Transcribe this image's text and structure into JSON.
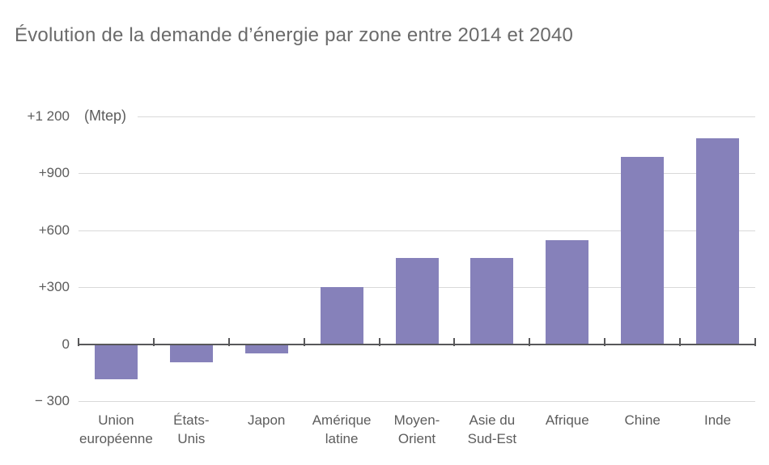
{
  "page": {
    "background_color": "#ffffff"
  },
  "chart_data": {
    "type": "bar",
    "title": "Évolution de la demande d’énergie par zone entre 2014 et 2040",
    "unit_label": "(Mtep)",
    "categories": [
      "Union européenne",
      "États-Unis",
      "Japon",
      "Amérique latine",
      "Moyen-Orient",
      "Asie du Sud-Est",
      "Afrique",
      "Chine",
      "Inde"
    ],
    "category_label_lines": [
      [
        "Union",
        "européenne"
      ],
      [
        "États-",
        "Unis"
      ],
      [
        "Japon"
      ],
      [
        "Amérique",
        "latine"
      ],
      [
        "Moyen-",
        "Orient"
      ],
      [
        "Asie du",
        "Sud-Est"
      ],
      [
        "Afrique"
      ],
      [
        "Chine"
      ],
      [
        "Inde"
      ]
    ],
    "values": [
      -185,
      -95,
      -50,
      300,
      455,
      455,
      545,
      985,
      1085
    ],
    "xlabel": "",
    "ylabel": "Mtep",
    "ylim": [
      -300,
      1200
    ],
    "grid": true,
    "legend_position": "none",
    "y_axis_ticks": [
      {
        "label": "+1 200",
        "value": 1200
      },
      {
        "label": "+900",
        "value": 900
      },
      {
        "label": "+600",
        "value": 600
      },
      {
        "label": "+300",
        "value": 300
      },
      {
        "label": "0",
        "value": 0
      },
      {
        "label": "− 300",
        "value": -300
      }
    ],
    "colors": {
      "bar": "#8681ba",
      "gridline": "#d9d9d9",
      "axis_line": "#58585a",
      "title_text": "#6b6b6b",
      "axis_text": "#5c5c5c"
    }
  }
}
